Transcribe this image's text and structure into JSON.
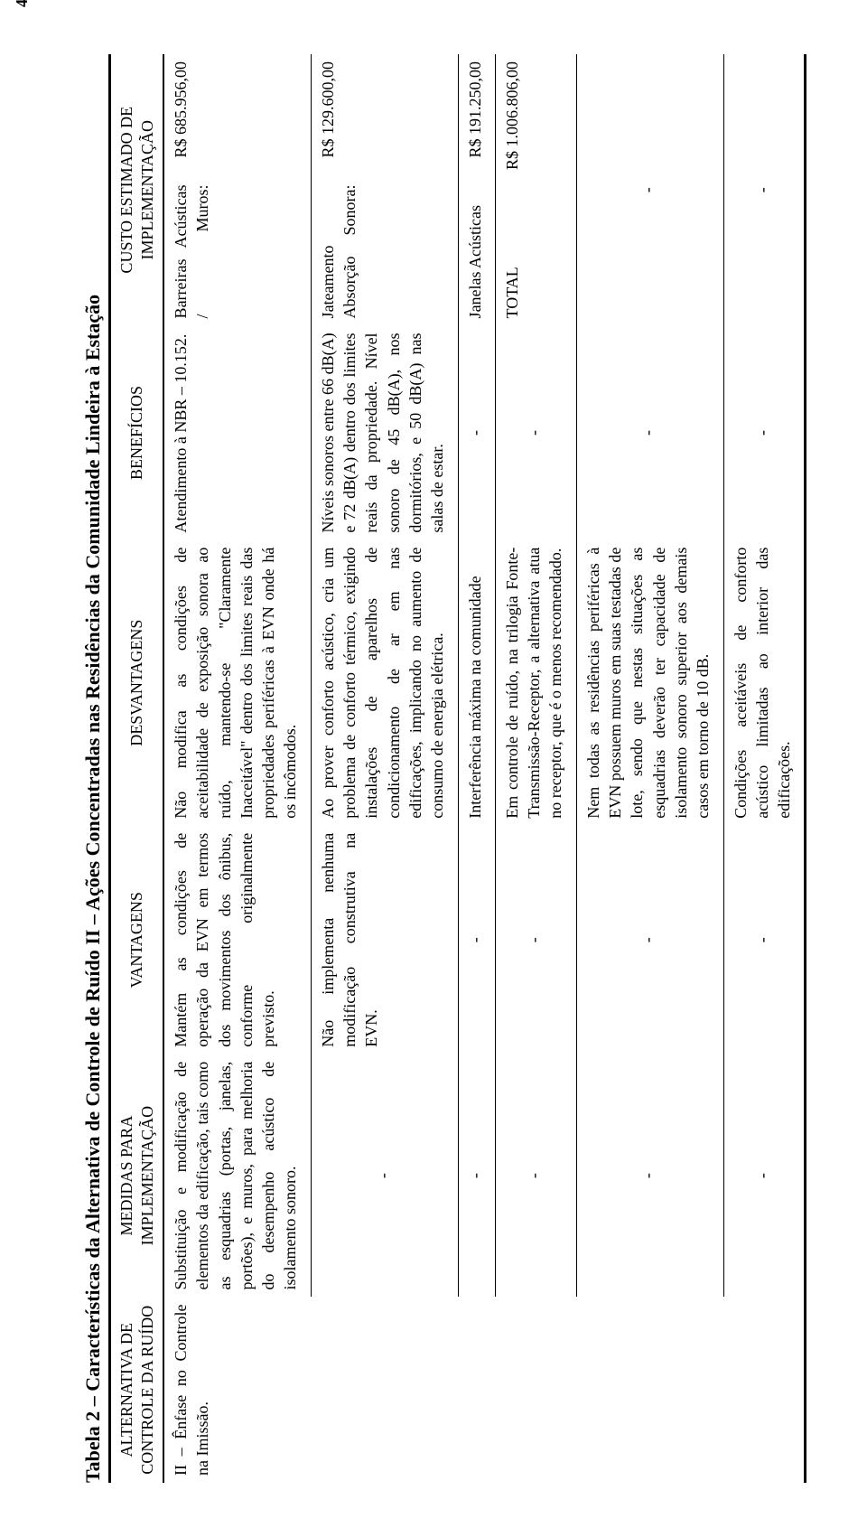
{
  "page_number": "4",
  "title": "Tabela 2 – Características da Alternativa de Controle de Ruído II – Ações Concentradas nas Residências da Comunidade Lindeira à Estação",
  "columns": {
    "c1": "ALTERNATIVA DE CONTROLE DA RUÍDO",
    "c2": "MEDIDAS PARA IMPLEMENTAÇÃO",
    "c3": "VANTAGENS",
    "c4": "DESVANTAGENS",
    "c5": "BENEFÍCIOS",
    "c6": "CUSTO ESTIMADO DE IMPLEMENTAÇÃO"
  },
  "col_widths": {
    "c1": "13%",
    "c2": "17%",
    "c3": "16%",
    "c4": "20%",
    "c5": "15%",
    "c6": "19%"
  },
  "rows": [
    {
      "c1": "II – Ênfase no Controle na Imissão.",
      "c2": "Substituição e modificação de elementos da edificação, tais como as esquadrias (portas, janelas, portões), e muros, para melhoria do desempenho acústico de isolamento sonoro.",
      "c3": "Mantém as condições de operação da EVN em termos dos movimentos dos ônibus, conforme originalmente previsto.",
      "c4": "Não modifica as condições de aceitabilidade de exposição sonora ao ruído, mantendo-se \"Claramente Inaceitável\" dentro dos limites reais das propriedades periféricas à EVN onde há os incômodos.",
      "c5": "Atendimento à NBR – 10.152.",
      "c6_label": "Barreiras Acústicas / Muros:",
      "c6_value": "R$ 685.956,00"
    },
    {
      "c1": "",
      "c2": "-",
      "c3": "Não implementa nenhuma modificação construtiva na EVN.",
      "c4": "Ao prover conforto acústico, cria um problema de conforto térmico, exigindo instalações de aparelhos de condicionamento de ar em nas edificações, implicando no aumento de consumo de energia elétrica.",
      "c5": "Níveis sonoros entre 66 dB(A) e 72 dB(A) dentro dos limites reais da propriedade. Nível sonoro de 45 dB(A), nos dormitórios, e 50 dB(A) nas salas de estar.",
      "c6_label": "Jateamento Absorção Sonora:",
      "c6_value": "R$ 129.600,00"
    },
    {
      "c1": "",
      "c2": "-",
      "c3": "-",
      "c4": "Interferência máxima na comunidade",
      "c5": "-",
      "c6_label": "Janelas Acústicas",
      "c6_value": "R$ 191.250,00"
    },
    {
      "c1": "",
      "c2": "-",
      "c3": "-",
      "c4": "Em controle de ruído, na trilogia Fonte-Transmissão-Receptor, a alternativa atua no receptor, que é o menos recomendado.",
      "c5": "-",
      "c6_label": "TOTAL",
      "c6_value": "R$ 1.006.806,00"
    },
    {
      "c1": "",
      "c2": "-",
      "c3": "-",
      "c4": "Nem todas as residências periféricas à EVN possuem muros em suas testadas de lote, sendo que nestas situações as esquadrias deverão ter capacidade de isolamento sonoro superior aos demais casos em torno de 10 dB.",
      "c5": "-",
      "c6_label": "",
      "c6_value": "-"
    },
    {
      "c1": "",
      "c2": "-",
      "c3": "-",
      "c4": "Condições aceitáveis de conforto acústico limitadas ao interior das edificações.",
      "c5": "-",
      "c6_label": "",
      "c6_value": "-"
    }
  ]
}
